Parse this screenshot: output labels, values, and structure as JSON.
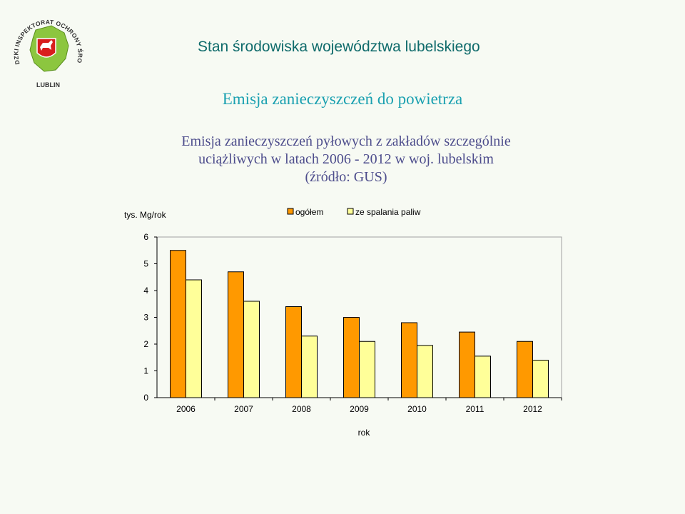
{
  "header": {
    "title": "Stan środowiska województwa lubelskiego",
    "logo_text": "WOJEWÓDZKI INSPEKTORAT OCHRONY ŚRODOWISKA",
    "logo_city": "LUBLIN"
  },
  "section_title": "Emisja zanieczyszczeń do powietrza",
  "chart_title_lines": [
    "Emisja zanieczyszczeń pyłowych z zakładów szczególnie",
    "uciążliwych w latach 2006 - 2012 w woj. lubelskim",
    "(źródło: GUS)"
  ],
  "chart_data": {
    "type": "bar",
    "ylabel": "tys. Mg/rok",
    "xlabel": "rok",
    "categories": [
      "2006",
      "2007",
      "2008",
      "2009",
      "2010",
      "2011",
      "2012"
    ],
    "ylim": [
      0,
      6
    ],
    "yticks": [
      0,
      1,
      2,
      3,
      4,
      5,
      6
    ],
    "grid": false,
    "legend_position": "top",
    "series": [
      {
        "name": "ogółem",
        "color": "#ff9900",
        "values": [
          5.5,
          4.7,
          3.4,
          3.0,
          2.8,
          2.45,
          2.1
        ]
      },
      {
        "name": "ze spalania paliw",
        "color": "#ffff99",
        "values": [
          4.4,
          3.6,
          2.3,
          2.1,
          1.95,
          1.55,
          1.4
        ]
      }
    ]
  }
}
